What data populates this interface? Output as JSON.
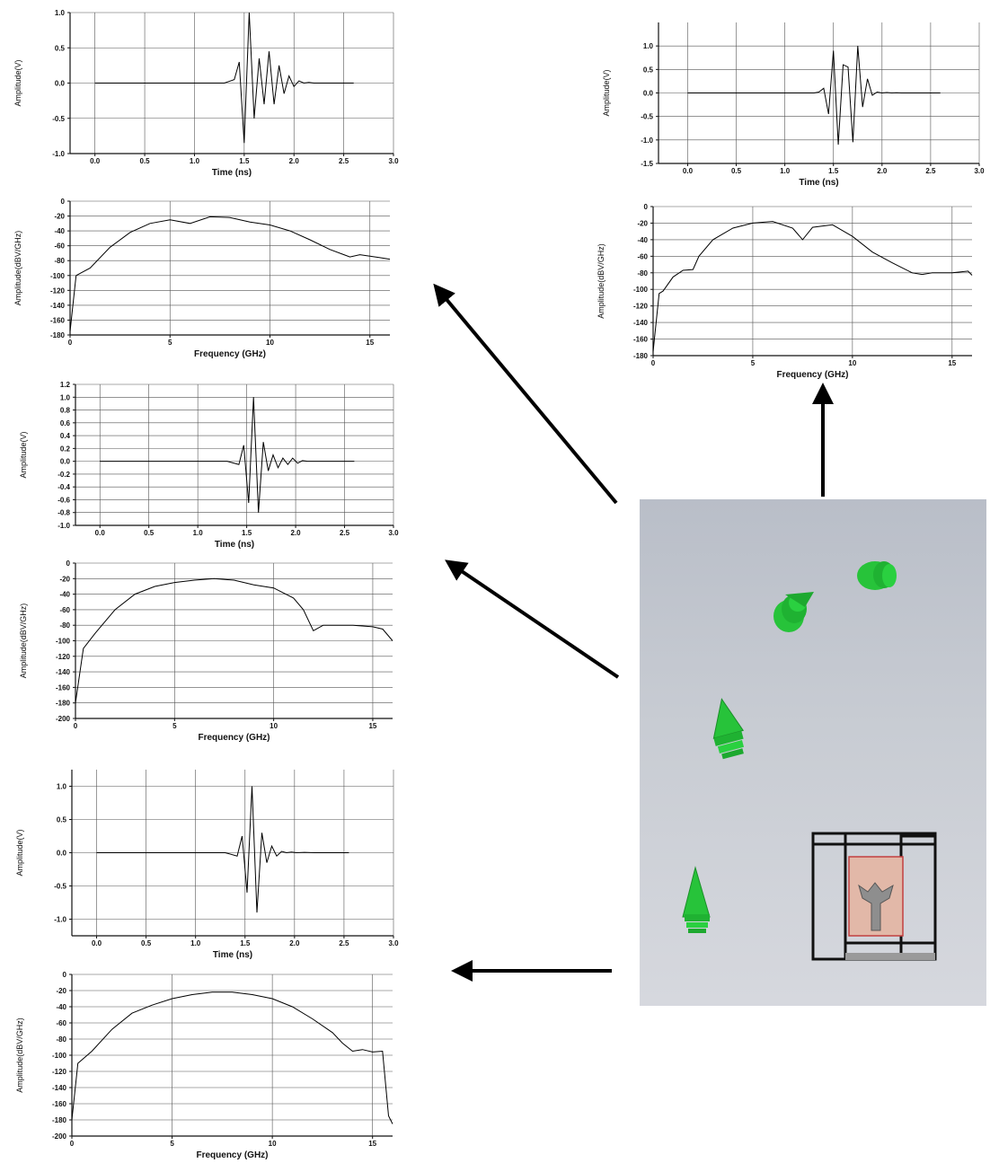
{
  "figure": {
    "colors": {
      "line": "#000000",
      "grid": "#555555",
      "tip_green": "#27c33a",
      "scene_bg": "#c3c7cf",
      "chip": "#e2b8a8"
    }
  },
  "chart_data": [
    {
      "id": "time_right",
      "type": "line",
      "xlabel": "Time (ns)",
      "ylabel": "Amplitude(V)",
      "xlim": [
        -0.3,
        3.0
      ],
      "ylim": [
        -1.5,
        1.5
      ],
      "xticks": [
        "0.0",
        "0.5",
        "1.0",
        "1.5",
        "2.0",
        "2.5",
        "3.0"
      ],
      "xtickvals": [
        0,
        0.5,
        1,
        1.5,
        2,
        2.5,
        3
      ],
      "yticks": [
        "1.0",
        "0.5",
        "0.0",
        "-0.5",
        "-1.0",
        "-1.5"
      ],
      "ytickvals": [
        1,
        0.5,
        0,
        -0.5,
        -1,
        -1.5
      ],
      "x": [
        0,
        1.3,
        1.35,
        1.4,
        1.45,
        1.5,
        1.55,
        1.6,
        1.65,
        1.7,
        1.75,
        1.8,
        1.85,
        1.9,
        1.95,
        2.0,
        2.05,
        2.1,
        2.15,
        2.2,
        2.6
      ],
      "y": [
        0,
        0,
        0.02,
        0.1,
        -0.45,
        0.9,
        -1.1,
        0.6,
        0.55,
        -1.05,
        1.0,
        -0.3,
        0.3,
        -0.05,
        0.02,
        0,
        0.01,
        0,
        0.005,
        0,
        0
      ]
    },
    {
      "id": "freq_right",
      "type": "line",
      "xlabel": "Frequency (GHz)",
      "ylabel": "Amplitude(dBV/GHz)",
      "xlim": [
        0,
        16
      ],
      "ylim": [
        -180,
        0
      ],
      "xticks": [
        "0",
        "5",
        "10",
        "15"
      ],
      "xtickvals": [
        0,
        5,
        10,
        15
      ],
      "yticks": [
        "0",
        "-20",
        "-40",
        "-60",
        "-80",
        "-100",
        "-120",
        "-140",
        "-160",
        "-180"
      ],
      "ytickvals": [
        0,
        -20,
        -40,
        -60,
        -80,
        -100,
        -120,
        -140,
        -160,
        -180
      ],
      "x": [
        0,
        0.3,
        0.5,
        1,
        1.5,
        2,
        2.3,
        3,
        4,
        5,
        6,
        7,
        7.5,
        8,
        9,
        10,
        11,
        12,
        13,
        13.5,
        14,
        15,
        15.8,
        16
      ],
      "y": [
        -175,
        -105,
        -102,
        -85,
        -77,
        -76,
        -60,
        -40,
        -26,
        -20,
        -18,
        -26,
        -40,
        -25,
        -22,
        -36,
        -55,
        -68,
        -80,
        -82,
        -80,
        -80,
        -78,
        -83
      ]
    },
    {
      "id": "time_a",
      "type": "line",
      "xlabel": "Time (ns)",
      "ylabel": "Amplitude(V)",
      "xlim": [
        -0.25,
        3.0
      ],
      "ylim": [
        -1.0,
        1.0
      ],
      "xticks": [
        "0.0",
        "0.5",
        "1.0",
        "1.5",
        "2.0",
        "2.5",
        "3.0"
      ],
      "xtickvals": [
        0,
        0.5,
        1,
        1.5,
        2,
        2.5,
        3
      ],
      "yticks": [
        "1.0",
        "0.5",
        "0.0",
        "-0.5",
        "-1.0"
      ],
      "ytickvals": [
        1,
        0.5,
        0,
        -0.5,
        -1
      ],
      "x": [
        0,
        1.3,
        1.4,
        1.45,
        1.5,
        1.55,
        1.6,
        1.65,
        1.7,
        1.75,
        1.8,
        1.85,
        1.9,
        1.95,
        2.0,
        2.05,
        2.1,
        2.15,
        2.2,
        2.3,
        2.6
      ],
      "y": [
        0,
        0,
        0.05,
        0.3,
        -0.85,
        1.0,
        -0.5,
        0.35,
        -0.3,
        0.45,
        -0.3,
        0.25,
        -0.15,
        0.1,
        -0.05,
        0.03,
        0,
        0.01,
        0,
        0,
        0
      ]
    },
    {
      "id": "freq_a",
      "type": "line",
      "xlabel": "Frequency (GHz)",
      "ylabel": "Amplitude(dBV/GHz)",
      "xlim": [
        0,
        16
      ],
      "ylim": [
        -180,
        0
      ],
      "xticks": [
        "0",
        "5",
        "10",
        "15"
      ],
      "xtickvals": [
        0,
        5,
        10,
        15
      ],
      "yticks": [
        "0",
        "-20",
        "-40",
        "-60",
        "-80",
        "-100",
        "-120",
        "-140",
        "-160",
        "-180"
      ],
      "ytickvals": [
        0,
        -20,
        -40,
        -60,
        -80,
        -100,
        -120,
        -140,
        -160,
        -180
      ],
      "x": [
        0,
        0.3,
        1,
        2,
        3,
        4,
        5,
        6,
        7,
        8,
        9,
        10,
        11,
        12,
        13,
        14,
        14.5,
        15,
        15.5,
        16
      ],
      "y": [
        -175,
        -100,
        -90,
        -62,
        -42,
        -30,
        -25,
        -30,
        -21,
        -22,
        -28,
        -32,
        -40,
        -52,
        -65,
        -75,
        -72,
        -74,
        -76,
        -78
      ]
    },
    {
      "id": "time_b",
      "type": "line",
      "xlabel": "Time (ns)",
      "ylabel": "Amplitude(V)",
      "xlim": [
        -0.25,
        3.0
      ],
      "ylim": [
        -1.0,
        1.2
      ],
      "xticks": [
        "0.0",
        "0.5",
        "1.0",
        "1.5",
        "2.0",
        "2.5",
        "3.0"
      ],
      "xtickvals": [
        0,
        0.5,
        1,
        1.5,
        2,
        2.5,
        3
      ],
      "yticks": [
        "1.2",
        "1.0",
        "0.8",
        "0.6",
        "0.4",
        "0.2",
        "0.0",
        "-0.2",
        "-0.4",
        "-0.6",
        "-0.8",
        "-1.0"
      ],
      "ytickvals": [
        1.2,
        1,
        0.8,
        0.6,
        0.4,
        0.2,
        0,
        -0.2,
        -0.4,
        -0.6,
        -0.8,
        -1
      ],
      "x": [
        0,
        1.3,
        1.42,
        1.47,
        1.52,
        1.57,
        1.62,
        1.67,
        1.72,
        1.77,
        1.82,
        1.87,
        1.92,
        1.97,
        2.02,
        2.07,
        2.12,
        2.2,
        2.6
      ],
      "y": [
        0,
        0,
        -0.05,
        0.25,
        -0.65,
        1.0,
        -0.8,
        0.3,
        -0.15,
        0.1,
        -0.1,
        0.05,
        -0.05,
        0.05,
        -0.03,
        0.01,
        0,
        0,
        0
      ]
    },
    {
      "id": "freq_b",
      "type": "line",
      "xlabel": "Frequency (GHz)",
      "ylabel": "Amplitude(dBV/GHz)",
      "xlim": [
        0,
        16
      ],
      "ylim": [
        -200,
        0
      ],
      "xticks": [
        "0",
        "5",
        "10",
        "15"
      ],
      "xtickvals": [
        0,
        5,
        10,
        15
      ],
      "yticks": [
        "0",
        "-20",
        "-40",
        "-60",
        "-80",
        "-100",
        "-120",
        "-140",
        "-160",
        "-180",
        "-200"
      ],
      "ytickvals": [
        0,
        -20,
        -40,
        -60,
        -80,
        -100,
        -120,
        -140,
        -160,
        -180,
        -200
      ],
      "x": [
        0,
        0.4,
        1,
        2,
        3,
        4,
        5,
        6,
        7,
        8,
        9,
        10,
        11,
        11.5,
        12,
        12.5,
        13,
        14,
        15,
        15.5,
        16
      ],
      "y": [
        -180,
        -110,
        -90,
        -60,
        -40,
        -30,
        -25,
        -22,
        -20,
        -22,
        -28,
        -32,
        -45,
        -60,
        -87,
        -80,
        -80,
        -80,
        -82,
        -85,
        -100
      ]
    },
    {
      "id": "time_c",
      "type": "line",
      "xlabel": "Time (ns)",
      "ylabel": "Amplitude(V)",
      "xlim": [
        -0.25,
        3.0
      ],
      "ylim": [
        -1.25,
        1.25
      ],
      "xticks": [
        "0.0",
        "0.5",
        "1.0",
        "1.5",
        "2.0",
        "2.5",
        "3.0"
      ],
      "xtickvals": [
        0,
        0.5,
        1,
        1.5,
        2,
        2.5,
        3
      ],
      "yticks": [
        "1.0",
        "0.5",
        "0.0",
        "-0.5",
        "-1.0"
      ],
      "ytickvals": [
        1,
        0.5,
        0,
        -0.5,
        -1
      ],
      "x": [
        0,
        1.3,
        1.42,
        1.47,
        1.52,
        1.57,
        1.62,
        1.67,
        1.72,
        1.77,
        1.82,
        1.87,
        1.92,
        1.97,
        2.02,
        2.1,
        2.2,
        2.55
      ],
      "y": [
        0,
        0,
        -0.05,
        0.25,
        -0.6,
        1.0,
        -0.9,
        0.3,
        -0.15,
        0.1,
        -0.05,
        0.02,
        0,
        0.01,
        0,
        0.005,
        0,
        0
      ]
    },
    {
      "id": "freq_c",
      "type": "line",
      "xlabel": "Frequency (GHz)",
      "ylabel": "Amplitude(dBV/GHz)",
      "xlim": [
        0,
        16
      ],
      "ylim": [
        -200,
        0
      ],
      "xticks": [
        "0",
        "5",
        "10",
        "15"
      ],
      "xtickvals": [
        0,
        5,
        10,
        15
      ],
      "yticks": [
        "0",
        "-20",
        "-40",
        "-60",
        "-80",
        "-100",
        "-120",
        "-140",
        "-160",
        "-180",
        "-200"
      ],
      "ytickvals": [
        0,
        -20,
        -40,
        -60,
        -80,
        -100,
        -120,
        -140,
        -160,
        -180,
        -200
      ],
      "x": [
        0,
        0.3,
        1,
        2,
        3,
        4,
        5,
        6,
        7,
        8,
        9,
        10,
        11,
        12,
        13,
        13.5,
        14,
        14.5,
        15,
        15.5,
        15.8,
        16
      ],
      "y": [
        -180,
        -110,
        -95,
        -68,
        -48,
        -38,
        -30,
        -25,
        -22,
        -22,
        -25,
        -30,
        -40,
        -55,
        -72,
        -85,
        -95,
        -93,
        -96,
        -95,
        -175,
        -185
      ]
    }
  ]
}
